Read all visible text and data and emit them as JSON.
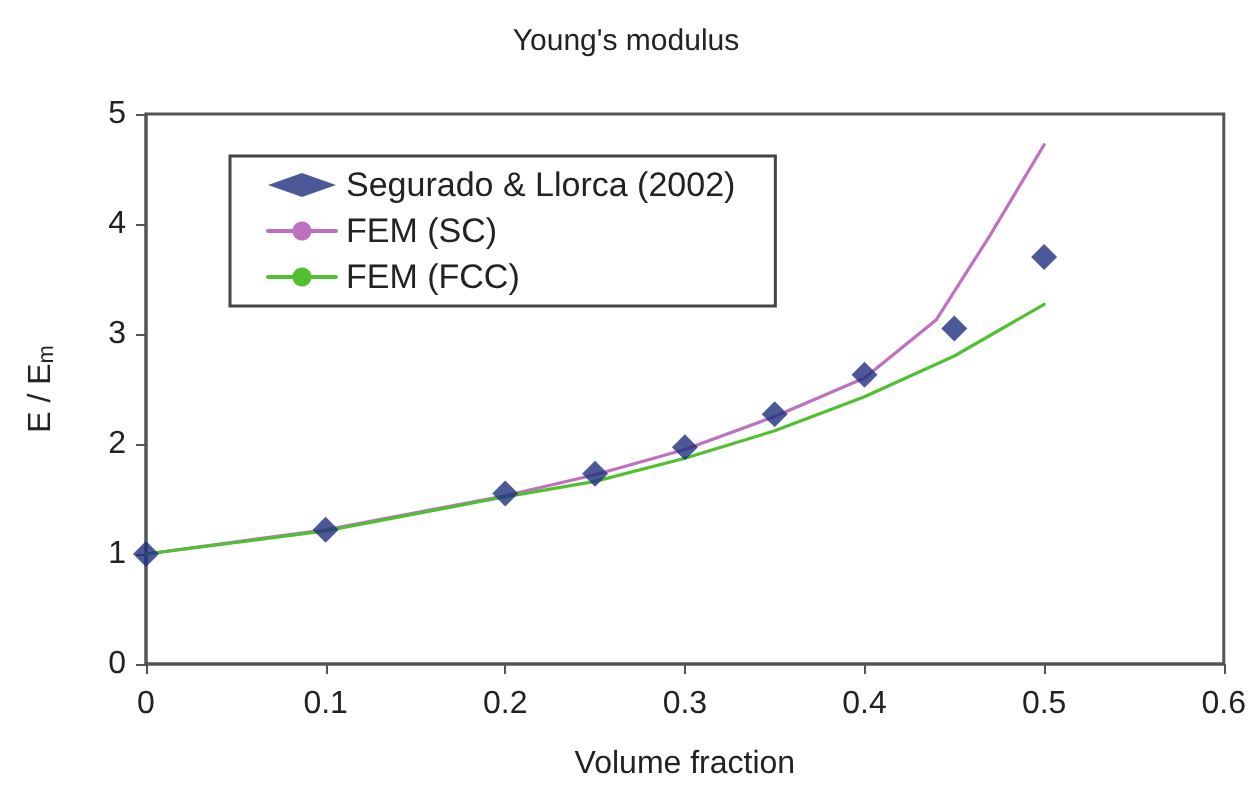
{
  "chart_data": {
    "type": "line",
    "title": "Young's modulus",
    "xlabel": "Volume fraction",
    "ylabel": "E / E$_{m}$",
    "xlim": [
      0,
      0.6
    ],
    "xticks": [
      0,
      0.1,
      0.2,
      0.3,
      0.4,
      0.5,
      0.6
    ],
    "ylim": [
      0,
      5
    ],
    "yticks": [
      0,
      1,
      2,
      3,
      4,
      5
    ],
    "grid": false,
    "legend": "top left",
    "series": [
      {
        "name": "Segurado & Llorca (2002)",
        "type": "scatter",
        "marker": "diamond",
        "color": "#1f2f80",
        "x": [
          0,
          0.1,
          0.2,
          0.25,
          0.3,
          0.35,
          0.4,
          0.45,
          0.5
        ],
        "values": [
          1.0,
          1.22,
          1.55,
          1.73,
          1.97,
          2.27,
          2.63,
          3.05,
          3.7
        ]
      },
      {
        "name": "FEM (SC)",
        "color": "#c070c0",
        "marker": "none",
        "x": [
          0,
          0.1,
          0.2,
          0.25,
          0.3,
          0.35,
          0.4,
          0.44,
          0.47,
          0.5
        ],
        "values": [
          1.0,
          1.22,
          1.53,
          1.72,
          1.95,
          2.25,
          2.6,
          3.13,
          3.9,
          4.72
        ]
      },
      {
        "name": "FEM (FCC)",
        "color": "#50c030",
        "marker": "none",
        "x": [
          0,
          0.1,
          0.2,
          0.25,
          0.3,
          0.35,
          0.4,
          0.45,
          0.5
        ],
        "values": [
          1.0,
          1.21,
          1.52,
          1.66,
          1.87,
          2.12,
          2.43,
          2.8,
          3.27
        ]
      }
    ]
  }
}
